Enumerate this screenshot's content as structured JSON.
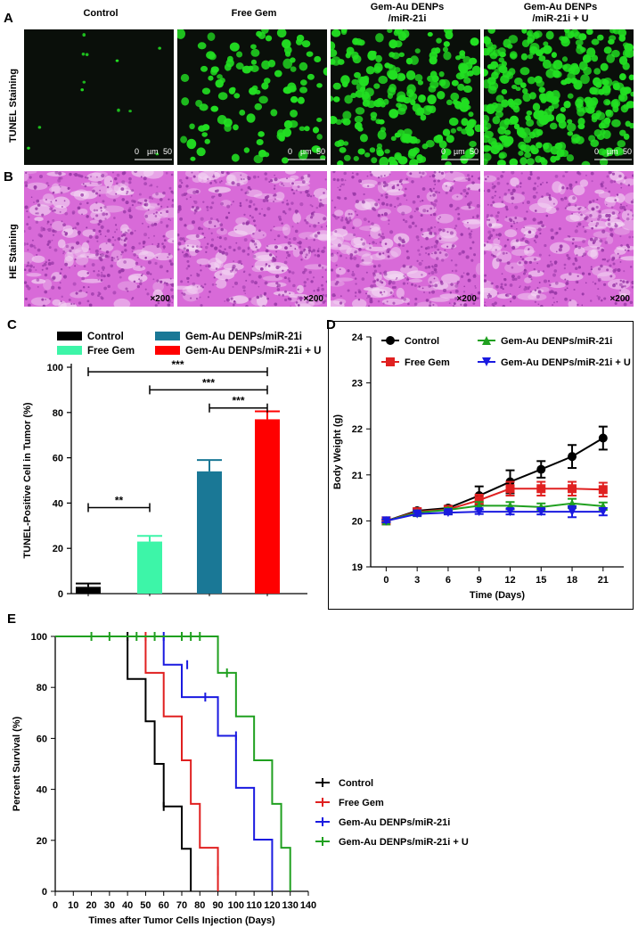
{
  "panel_letters": {
    "a": "A",
    "b": "B",
    "c": "C",
    "d": "D",
    "e": "E"
  },
  "micro": {
    "columns": [
      "Control",
      "Free Gem",
      "Gem-Au DENPs\n/miR-21i",
      "Gem-Au DENPs\n/miR-21i + U"
    ],
    "column_lines": [
      [
        "Control"
      ],
      [
        "Free Gem"
      ],
      [
        "Gem-Au DENPs",
        "/miR-21i"
      ],
      [
        "Gem-Au DENPs",
        "/miR-21i + U"
      ]
    ],
    "row_tunel": "TUNEL Staining",
    "row_he": "HE Staining",
    "scale_zero": "0",
    "scale_unit": "µm",
    "scale_max": "50",
    "magnification": "×200",
    "colors": {
      "tunel_bg": "#0a0f0a",
      "tunel_cell": "#22e022",
      "he_bg": "#d86ad8",
      "he_dark": "#9a3aa8",
      "he_light": "#f3d8f3"
    }
  },
  "chart_data": [
    {
      "id": "C",
      "type": "bar",
      "title": "",
      "ylabel": "TUNEL-Positive Cell in Tumor (%)",
      "xlabel": "",
      "ylim": [
        0,
        100
      ],
      "yticks": [
        0,
        20,
        40,
        60,
        80,
        100
      ],
      "categories": [
        "Control",
        "Free Gem",
        "Gem-Au DENPs/miR-21i",
        "Gem-Au DENPs/miR-21i + U"
      ],
      "values": [
        3,
        23,
        54,
        77
      ],
      "errors": [
        1.5,
        2.5,
        5,
        3.5
      ],
      "colors": [
        "#000000",
        "#3df5a8",
        "#1a7896",
        "#ff0000"
      ],
      "legend": [
        "Control",
        "Free Gem",
        "Gem-Au DENPs/miR-21i",
        "Gem-Au DENPs/miR-21i + U"
      ],
      "significance": [
        {
          "from": 0,
          "to": 1,
          "label": "**",
          "y": 38
        },
        {
          "from": 0,
          "to": 3,
          "label": "***",
          "y": 98
        },
        {
          "from": 1,
          "to": 3,
          "label": "***",
          "y": 90
        },
        {
          "from": 2,
          "to": 3,
          "label": "***",
          "y": 82
        }
      ]
    },
    {
      "id": "D",
      "type": "line",
      "title": "",
      "xlabel": "Time (Days)",
      "ylabel": "Body Weight (g)",
      "xlim": [
        -1.5,
        23
      ],
      "ylim": [
        19,
        24
      ],
      "xticks": [
        0,
        3,
        6,
        9,
        12,
        15,
        18,
        21
      ],
      "yticks": [
        19,
        20,
        21,
        22,
        23,
        24
      ],
      "x": [
        0,
        3,
        6,
        9,
        12,
        15,
        18,
        21
      ],
      "series": [
        {
          "name": "Control",
          "color": "#000000",
          "marker": "circle",
          "values": [
            20,
            20.22,
            20.28,
            20.55,
            20.85,
            21.12,
            21.4,
            21.8
          ],
          "errors": [
            0.03,
            0.05,
            0.05,
            0.2,
            0.25,
            0.18,
            0.25,
            0.25
          ]
        },
        {
          "name": "Free Gem",
          "color": "#e02020",
          "marker": "square",
          "values": [
            20,
            20.2,
            20.25,
            20.45,
            20.7,
            20.7,
            20.7,
            20.68
          ],
          "errors": [
            0.03,
            0.04,
            0.05,
            0.12,
            0.15,
            0.15,
            0.15,
            0.15
          ]
        },
        {
          "name": "Gem-Au DENPs/miR-21i",
          "color": "#20a020",
          "marker": "triangle-up",
          "values": [
            20,
            20.18,
            20.24,
            20.33,
            20.33,
            20.3,
            20.38,
            20.32
          ],
          "errors": [
            0.03,
            0.04,
            0.04,
            0.08,
            0.08,
            0.08,
            0.1,
            0.08
          ]
        },
        {
          "name": "Gem-Au DENPs/miR-21i + U",
          "color": "#1a1ae0",
          "marker": "triangle-down",
          "values": [
            20,
            20.15,
            20.18,
            20.2,
            20.2,
            20.2,
            20.2,
            20.2
          ],
          "errors": [
            0.03,
            0.04,
            0.04,
            0.05,
            0.06,
            0.06,
            0.12,
            0.08
          ]
        }
      ]
    },
    {
      "id": "E",
      "type": "line",
      "subtype": "kaplan-meier",
      "title": "",
      "xlabel": "Times after Tumor Cells Injection (Days)",
      "ylabel": "Percent Survival (%)",
      "xlim": [
        0,
        140
      ],
      "ylim": [
        0,
        100
      ],
      "xticks": [
        0,
        10,
        20,
        30,
        40,
        50,
        60,
        70,
        80,
        90,
        100,
        110,
        120,
        130,
        140
      ],
      "yticks": [
        0,
        20,
        40,
        60,
        80,
        100
      ],
      "series": [
        {
          "name": "Control",
          "color": "#000000",
          "steps": [
            [
              0,
              100
            ],
            [
              40,
              83.3
            ],
            [
              50,
              66.7
            ],
            [
              55,
              50
            ],
            [
              60,
              33.3
            ],
            [
              70,
              16.7
            ],
            [
              75,
              0
            ]
          ],
          "censor": [
            [
              40,
              100
            ],
            [
              60,
              33.3
            ]
          ]
        },
        {
          "name": "Free Gem",
          "color": "#e02020",
          "steps": [
            [
              0,
              100
            ],
            [
              50,
              85.7
            ],
            [
              60,
              68.6
            ],
            [
              70,
              51.4
            ],
            [
              75,
              34.3
            ],
            [
              80,
              17.1
            ],
            [
              90,
              0
            ]
          ],
          "censor": [
            [
              50,
              100
            ],
            [
              90,
              8
            ]
          ]
        },
        {
          "name": "Gem-Au DENPs/miR-21i",
          "color": "#1a1ae0",
          "steps": [
            [
              0,
              100
            ],
            [
              60,
              88.9
            ],
            [
              70,
              76.2
            ],
            [
              90,
              61
            ],
            [
              100,
              40.6
            ],
            [
              110,
              20.3
            ],
            [
              120,
              0
            ]
          ],
          "censor": [
            [
              60,
              100
            ],
            [
              73,
              88.9
            ],
            [
              83,
              76.2
            ],
            [
              100,
              61
            ]
          ]
        },
        {
          "name": "Gem-Au DENPs/miR-21i + U",
          "color": "#20a020",
          "steps": [
            [
              0,
              100
            ],
            [
              90,
              85.7
            ],
            [
              100,
              68.6
            ],
            [
              110,
              51.4
            ],
            [
              120,
              34.3
            ],
            [
              125,
              17.1
            ],
            [
              130,
              0
            ]
          ],
          "censor": [
            [
              20,
              100
            ],
            [
              30,
              100
            ],
            [
              45,
              100
            ],
            [
              55,
              100
            ],
            [
              70,
              100
            ],
            [
              75,
              100
            ],
            [
              80,
              100
            ],
            [
              95,
              85.7
            ]
          ]
        }
      ],
      "legend": [
        "Control",
        "Free Gem",
        "Gem-Au DENPs/miR-21i",
        "Gem-Au DENPs/miR-21i + U"
      ]
    }
  ]
}
